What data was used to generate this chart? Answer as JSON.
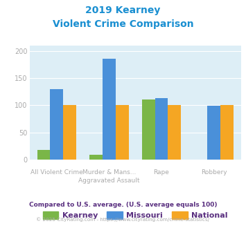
{
  "title_line1": "2019 Kearney",
  "title_line2": "Violent Crime Comparison",
  "title_color": "#1a8fd1",
  "cat_top": [
    "",
    "Murder & Mans...",
    "",
    ""
  ],
  "cat_bottom": [
    "All Violent Crime",
    "Aggravated Assault",
    "Rape",
    "Robbery"
  ],
  "kearney": [
    18,
    9,
    111,
    0
  ],
  "missouri": [
    130,
    186,
    113,
    99
  ],
  "national": [
    100,
    100,
    100,
    100
  ],
  "kearney_color": "#7ab648",
  "missouri_color": "#4a90d9",
  "national_color": "#f5a623",
  "bg_color": "#ddeef6",
  "ylim": [
    0,
    210
  ],
  "yticks": [
    0,
    50,
    100,
    150,
    200
  ],
  "legend_labels": [
    "Kearney",
    "Missouri",
    "National"
  ],
  "legend_label_color": "#5a3080",
  "footnote1": "Compared to U.S. average. (U.S. average equals 100)",
  "footnote1_color": "#5a3080",
  "footnote2_part1": "© 2025 CityRating.com - ",
  "footnote2_part2": "https://www.cityrating.com/crime-statistics/",
  "footnote2_color": "#aaaaaa",
  "footnote2_url_color": "#4a90d9",
  "xlabel_color": "#aaaaaa",
  "ytick_color": "#aaaaaa"
}
